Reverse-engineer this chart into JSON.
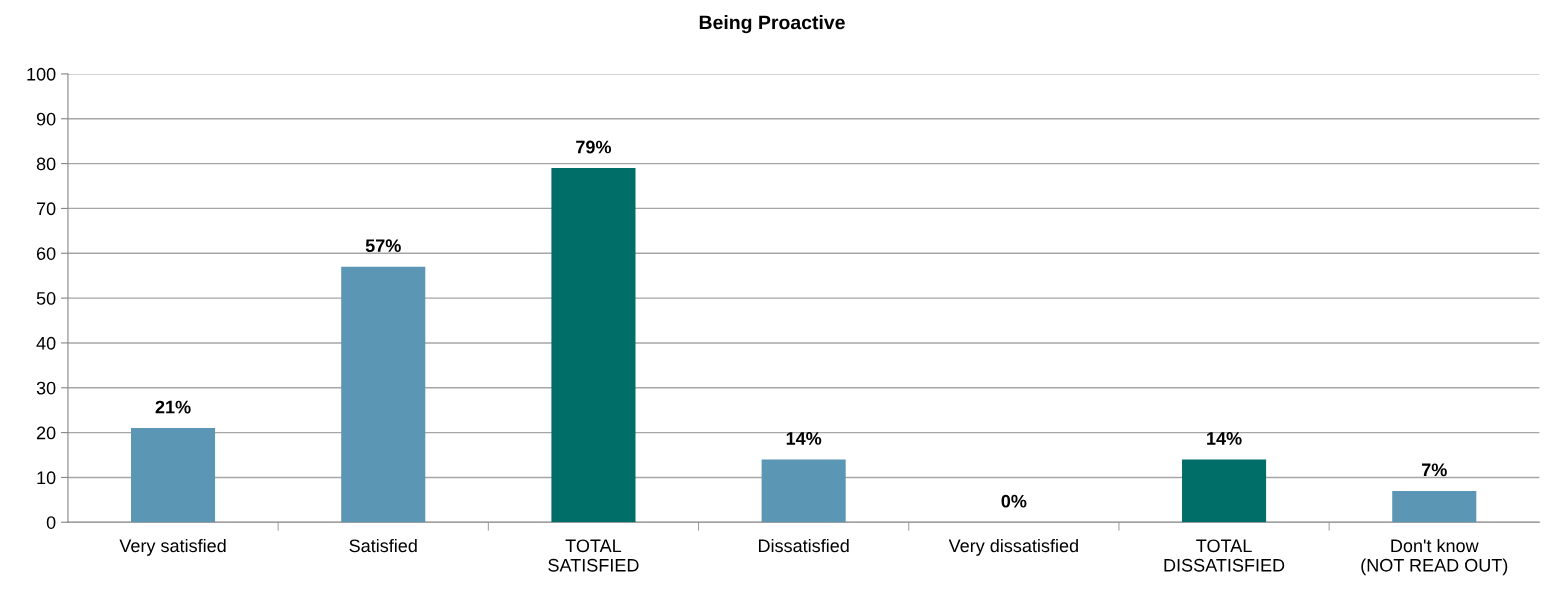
{
  "chart_data": {
    "type": "bar",
    "title": "Being Proactive",
    "categories": [
      "Very satisfied",
      "Satisfied",
      "TOTAL\nSATISFIED",
      "Dissatisfied",
      "Very dissatisfied",
      "TOTAL\nDISSATISFIED",
      "Don't know\n(NOT READ OUT)"
    ],
    "values": [
      21,
      57,
      79,
      14,
      0,
      14,
      7
    ],
    "colors": [
      "#5b96b5",
      "#5b96b5",
      "#006e68",
      "#5b96b5",
      "#5b96b5",
      "#006e68",
      "#5b96b5"
    ],
    "value_labels": [
      "21%",
      "57%",
      "79%",
      "14%",
      "0%",
      "14%",
      "7%"
    ],
    "ylim": [
      0,
      100
    ],
    "yticks": [
      0,
      10,
      20,
      30,
      40,
      50,
      60,
      70,
      80,
      90,
      100
    ],
    "grid": "y"
  }
}
